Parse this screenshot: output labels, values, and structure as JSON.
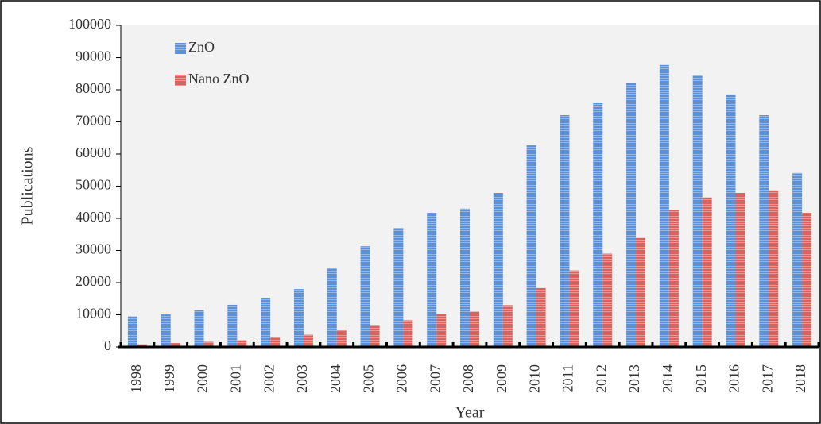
{
  "chart_data": {
    "type": "bar",
    "x_label": "Year",
    "y_label": "Publications",
    "categories": [
      "1998",
      "1999",
      "2000",
      "2001",
      "2002",
      "2003",
      "2004",
      "2005",
      "2006",
      "2007",
      "2008",
      "2009",
      "2010",
      "2011",
      "2012",
      "2013",
      "2014",
      "2015",
      "2016",
      "2017",
      "2018"
    ],
    "series": [
      {
        "name": "ZnO",
        "color": "#5b8fd6",
        "values": [
          9500,
          10100,
          11400,
          13100,
          15300,
          18000,
          24500,
          31300,
          37000,
          41700,
          43000,
          47900,
          62700,
          72100,
          75800,
          82200,
          87700,
          84400,
          78300,
          72100,
          54100
        ]
      },
      {
        "name": "Nano ZnO",
        "color": "#d9625e",
        "values": [
          800,
          1200,
          1600,
          2100,
          3000,
          3800,
          5400,
          6800,
          8300,
          10200,
          11000,
          13000,
          18300,
          23800,
          29000,
          33900,
          42700,
          46500,
          47900,
          48700,
          41700
        ]
      }
    ],
    "ylim": [
      0,
      100000
    ],
    "yticks": [
      0,
      10000,
      20000,
      30000,
      40000,
      50000,
      60000,
      70000,
      80000,
      90000,
      100000
    ],
    "legend": "upper left"
  }
}
